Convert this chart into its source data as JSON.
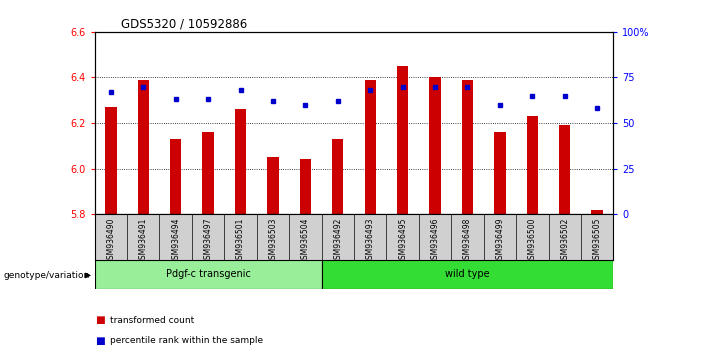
{
  "title": "GDS5320 / 10592886",
  "samples": [
    "GSM936490",
    "GSM936491",
    "GSM936494",
    "GSM936497",
    "GSM936501",
    "GSM936503",
    "GSM936504",
    "GSM936492",
    "GSM936493",
    "GSM936495",
    "GSM936496",
    "GSM936498",
    "GSM936499",
    "GSM936500",
    "GSM936502",
    "GSM936505"
  ],
  "bar_values": [
    6.27,
    6.39,
    6.13,
    6.16,
    6.26,
    6.05,
    6.04,
    6.13,
    6.39,
    6.45,
    6.4,
    6.39,
    6.16,
    6.23,
    6.19,
    5.82
  ],
  "dot_values": [
    67,
    70,
    63,
    63,
    68,
    62,
    60,
    62,
    68,
    70,
    70,
    70,
    60,
    65,
    65,
    58
  ],
  "bar_bottom": 5.8,
  "ylim": [
    5.8,
    6.6
  ],
  "y2lim": [
    0,
    100
  ],
  "yticks": [
    5.8,
    6.0,
    6.2,
    6.4,
    6.6
  ],
  "y2ticks": [
    0,
    25,
    50,
    75,
    100
  ],
  "bar_color": "#cc0000",
  "dot_color": "#0000cc",
  "group1_label": "Pdgf-c transgenic",
  "group2_label": "wild type",
  "group1_count": 7,
  "group2_count": 9,
  "group1_color": "#99ee99",
  "group2_color": "#33dd33",
  "genotype_label": "genotype/variation",
  "legend_bar": "transformed count",
  "legend_dot": "percentile rank within the sample",
  "cell_bg_color": "#d0d0d0",
  "background_color": "#ffffff"
}
